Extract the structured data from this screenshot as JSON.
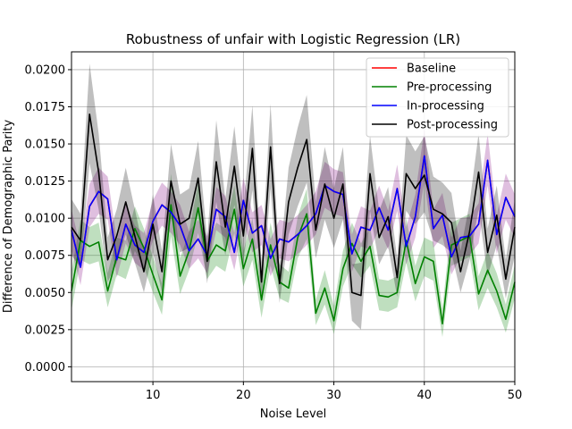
{
  "chart_data": {
    "type": "line",
    "title": "Robustness of unfair with Logistic Regression (LR)",
    "xlabel": "Noise Level",
    "ylabel": "Difference of Demographic Parity",
    "xlim": [
      1,
      50
    ],
    "ylim": [
      -0.001,
      0.0212
    ],
    "xticks": [
      10,
      20,
      30,
      40,
      50
    ],
    "yticks": [
      0.0,
      0.0025,
      0.005,
      0.0075,
      0.01,
      0.0125,
      0.015,
      0.0175,
      0.02
    ],
    "ytick_labels": [
      "0.0000",
      "0.0025",
      "0.0050",
      "0.0075",
      "0.0100",
      "0.0125",
      "0.0150",
      "0.0175",
      "0.0200"
    ],
    "grid": true,
    "legend_position": "top-right",
    "x": [
      1,
      2,
      3,
      4,
      5,
      6,
      7,
      8,
      9,
      10,
      11,
      12,
      13,
      14,
      15,
      16,
      17,
      18,
      19,
      20,
      21,
      22,
      23,
      24,
      25,
      26,
      27,
      28,
      29,
      30,
      31,
      32,
      33,
      34,
      35,
      36,
      37,
      38,
      39,
      40,
      41,
      42,
      43,
      44,
      45,
      46,
      47,
      48,
      49,
      50
    ],
    "series": [
      {
        "name": "Baseline",
        "color": "#ff0000",
        "values": [
          0.0092,
          0.0067,
          0.0108,
          0.0118,
          0.0113,
          0.0072,
          0.0096,
          0.0082,
          0.0077,
          0.0098,
          0.0109,
          0.0104,
          0.0095,
          0.0078,
          0.0086,
          0.0075,
          0.0106,
          0.0101,
          0.0077,
          0.0112,
          0.009,
          0.0095,
          0.0073,
          0.0086,
          0.0084,
          0.0089,
          0.0095,
          0.0103,
          0.0122,
          0.0118,
          0.0116,
          0.0076,
          0.0094,
          0.0092,
          0.0107,
          0.0092,
          0.012,
          0.0081,
          0.0101,
          0.0142,
          0.0093,
          0.0102,
          0.0074,
          0.0087,
          0.0088,
          0.0096,
          0.0139,
          0.0089,
          0.0114,
          0.0101
        ]
      },
      {
        "name": "Pre-processing",
        "color": "#008000",
        "fill": "#008000",
        "values": [
          0.0051,
          0.0085,
          0.0081,
          0.0084,
          0.0051,
          0.0074,
          0.0072,
          0.0093,
          0.008,
          0.0062,
          0.0045,
          0.0109,
          0.0061,
          0.0078,
          0.0107,
          0.0071,
          0.0082,
          0.0078,
          0.0106,
          0.0066,
          0.0086,
          0.0045,
          0.0082,
          0.0057,
          0.0053,
          0.0087,
          0.0103,
          0.0036,
          0.0053,
          0.0031,
          0.0066,
          0.0083,
          0.0071,
          0.0081,
          0.0048,
          0.0047,
          0.005,
          0.0085,
          0.0056,
          0.0074,
          0.0071,
          0.0029,
          0.0082,
          0.0085,
          0.0088,
          0.0049,
          0.0065,
          0.0051,
          0.0032,
          0.0057
        ],
        "lower": [
          0.0038,
          0.0072,
          0.0069,
          0.0071,
          0.004,
          0.0062,
          0.0059,
          0.0078,
          0.0067,
          0.005,
          0.0035,
          0.0088,
          0.0049,
          0.0065,
          0.009,
          0.0059,
          0.0068,
          0.0064,
          0.009,
          0.0054,
          0.0072,
          0.0033,
          0.0068,
          0.0046,
          0.0043,
          0.0073,
          0.0086,
          0.0028,
          0.0042,
          0.0022,
          0.0054,
          0.0069,
          0.006,
          0.0068,
          0.0038,
          0.0037,
          0.004,
          0.007,
          0.0044,
          0.0061,
          0.0058,
          0.002,
          0.0068,
          0.0071,
          0.0074,
          0.0038,
          0.0053,
          0.004,
          0.0023,
          0.0046
        ],
        "upper": [
          0.0064,
          0.0099,
          0.0094,
          0.0097,
          0.0063,
          0.0087,
          0.0085,
          0.0108,
          0.0093,
          0.0074,
          0.0056,
          0.013,
          0.0073,
          0.0091,
          0.0124,
          0.0083,
          0.0097,
          0.0093,
          0.0122,
          0.0078,
          0.01,
          0.0057,
          0.0097,
          0.0069,
          0.0064,
          0.0101,
          0.012,
          0.0045,
          0.0065,
          0.0041,
          0.0078,
          0.0097,
          0.0083,
          0.0094,
          0.0059,
          0.0058,
          0.0061,
          0.01,
          0.0068,
          0.0087,
          0.0084,
          0.0039,
          0.0097,
          0.01,
          0.0103,
          0.0061,
          0.0078,
          0.0063,
          0.0042,
          0.0069
        ]
      },
      {
        "name": "In-processing",
        "color": "#0000ff",
        "fill": "#800080",
        "values": [
          0.0092,
          0.0067,
          0.0108,
          0.0118,
          0.0113,
          0.0072,
          0.0096,
          0.0082,
          0.0077,
          0.0098,
          0.0109,
          0.0104,
          0.0095,
          0.0078,
          0.0086,
          0.0075,
          0.0106,
          0.0101,
          0.0077,
          0.0112,
          0.009,
          0.0095,
          0.0073,
          0.0086,
          0.0084,
          0.0089,
          0.0095,
          0.0103,
          0.0122,
          0.0118,
          0.0116,
          0.0076,
          0.0094,
          0.0092,
          0.0107,
          0.0092,
          0.012,
          0.0081,
          0.0101,
          0.0142,
          0.0093,
          0.0102,
          0.0074,
          0.0087,
          0.0088,
          0.0096,
          0.0139,
          0.0089,
          0.0114,
          0.0101
        ],
        "lower": [
          0.0079,
          0.0055,
          0.0094,
          0.0103,
          0.0099,
          0.006,
          0.0083,
          0.007,
          0.0065,
          0.0085,
          0.0095,
          0.009,
          0.0082,
          0.0066,
          0.0073,
          0.0063,
          0.0092,
          0.0087,
          0.0065,
          0.0098,
          0.0077,
          0.0082,
          0.0061,
          0.0073,
          0.0071,
          0.0076,
          0.0082,
          0.0089,
          0.0107,
          0.0103,
          0.0101,
          0.0064,
          0.0081,
          0.0079,
          0.0093,
          0.0079,
          0.0105,
          0.0069,
          0.0087,
          0.0125,
          0.008,
          0.0088,
          0.0062,
          0.0074,
          0.0075,
          0.0083,
          0.0122,
          0.0076,
          0.0099,
          0.0087
        ],
        "upper": [
          0.0106,
          0.008,
          0.0123,
          0.0134,
          0.0128,
          0.0085,
          0.011,
          0.0095,
          0.009,
          0.0112,
          0.0124,
          0.0118,
          0.0109,
          0.0091,
          0.0099,
          0.0088,
          0.0121,
          0.0115,
          0.009,
          0.0127,
          0.0104,
          0.0109,
          0.0086,
          0.0099,
          0.0097,
          0.0102,
          0.0109,
          0.0118,
          0.0138,
          0.0133,
          0.0131,
          0.0089,
          0.0108,
          0.0105,
          0.0122,
          0.0105,
          0.0136,
          0.0094,
          0.0116,
          0.016,
          0.0106,
          0.0117,
          0.0087,
          0.01,
          0.0101,
          0.011,
          0.0157,
          0.0102,
          0.013,
          0.0116
        ]
      },
      {
        "name": "Post-processing",
        "color": "#000000",
        "fill": "#000000",
        "values": [
          0.0094,
          0.0085,
          0.017,
          0.0131,
          0.0072,
          0.0088,
          0.0111,
          0.0088,
          0.0064,
          0.0096,
          0.0064,
          0.0125,
          0.0096,
          0.01,
          0.0127,
          0.0071,
          0.0138,
          0.0094,
          0.0135,
          0.0088,
          0.0147,
          0.0057,
          0.0148,
          0.0056,
          0.0111,
          0.0134,
          0.0153,
          0.0092,
          0.0123,
          0.01,
          0.0123,
          0.005,
          0.0048,
          0.013,
          0.0087,
          0.0101,
          0.006,
          0.013,
          0.012,
          0.0129,
          0.0106,
          0.0103,
          0.0097,
          0.0064,
          0.0091,
          0.0131,
          0.0077,
          0.0102,
          0.0059,
          0.0094
        ],
        "lower": [
          0.0075,
          0.0067,
          0.0137,
          0.0106,
          0.0057,
          0.007,
          0.0089,
          0.007,
          0.005,
          0.0077,
          0.005,
          0.0101,
          0.0077,
          0.008,
          0.0103,
          0.0056,
          0.0111,
          0.0075,
          0.0109,
          0.007,
          0.0119,
          0.0044,
          0.012,
          0.0043,
          0.0089,
          0.0108,
          0.0124,
          0.0073,
          0.0099,
          0.008,
          0.0099,
          0.0031,
          0.0025,
          0.0105,
          0.0069,
          0.0081,
          0.0047,
          0.0105,
          0.0096,
          0.0104,
          0.0085,
          0.0082,
          0.0077,
          0.005,
          0.0072,
          0.0106,
          0.0061,
          0.0082,
          0.0046,
          0.0075
        ],
        "upper": [
          0.0113,
          0.0103,
          0.0204,
          0.0157,
          0.0087,
          0.0106,
          0.0134,
          0.0106,
          0.0078,
          0.0116,
          0.0078,
          0.015,
          0.0116,
          0.012,
          0.0152,
          0.0086,
          0.0166,
          0.0113,
          0.0162,
          0.0106,
          0.0176,
          0.007,
          0.0177,
          0.0069,
          0.0134,
          0.0161,
          0.0183,
          0.0111,
          0.0148,
          0.012,
          0.0148,
          0.0069,
          0.007,
          0.0156,
          0.0105,
          0.0121,
          0.0073,
          0.0156,
          0.0145,
          0.0155,
          0.0128,
          0.0124,
          0.0117,
          0.0078,
          0.011,
          0.0157,
          0.0093,
          0.0122,
          0.0072,
          0.0113
        ]
      }
    ]
  }
}
